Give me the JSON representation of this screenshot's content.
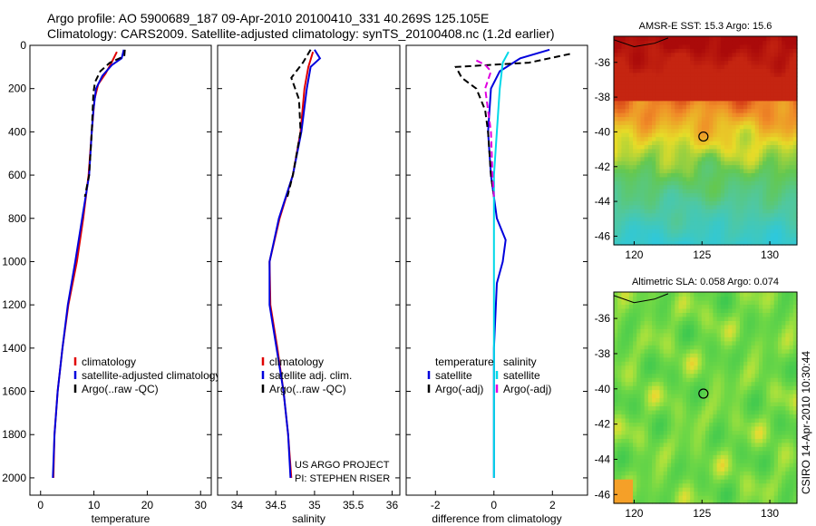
{
  "header": {
    "line1": "Argo profile: AO 5900689_187 09-Apr-2010 20100410_331 40.269S 125.105E",
    "line2": "Climatology: CARS2009. Satellite-adjusted climatology: synTS_20100408.nc (1.2d earlier)"
  },
  "side_label": "CSIRO 14-Apr-2010 10:30:44",
  "colors": {
    "climatology": "#e00000",
    "satellite": "#0000dd",
    "argo": "#000000",
    "satellite_salinity": "#00d8e8",
    "argo_adj_salinity": "#e000e0"
  },
  "chart_data": [
    {
      "type": "line",
      "xlabel": "temperature",
      "ylabel": "",
      "xlim": [
        -2,
        32
      ],
      "ylim": [
        2080,
        0
      ],
      "y_reversed": true,
      "x_ticks": [
        0,
        10,
        20,
        30
      ],
      "y_ticks": [
        0,
        200,
        400,
        600,
        800,
        1000,
        1200,
        1400,
        1600,
        1800,
        2000
      ],
      "legend": [
        "climatology",
        "satellite-adjusted climatology",
        "Argo(..raw -QC)"
      ],
      "legend_position": "lower-right",
      "series": [
        {
          "name": "climatology",
          "color_key": "climatology",
          "dash": "solid",
          "points": [
            [
              14.3,
              30
            ],
            [
              13.3,
              80
            ],
            [
              12.2,
              130
            ],
            [
              10.8,
              180
            ],
            [
              10.1,
              250
            ],
            [
              9.6,
              400
            ],
            [
              9.0,
              600
            ],
            [
              8.0,
              800
            ],
            [
              6.8,
              1000
            ],
            [
              5.2,
              1200
            ],
            [
              4.1,
              1400
            ],
            [
              3.2,
              1600
            ],
            [
              2.6,
              1800
            ],
            [
              2.4,
              2000
            ]
          ]
        },
        {
          "name": "satellite-adjusted climatology",
          "color_key": "satellite",
          "dash": "solid",
          "points": [
            [
              15.6,
              20
            ],
            [
              15.2,
              60
            ],
            [
              13.4,
              90
            ],
            [
              11.6,
              140
            ],
            [
              10.4,
              200
            ],
            [
              9.9,
              300
            ],
            [
              9.6,
              400
            ],
            [
              9.1,
              600
            ],
            [
              7.8,
              800
            ],
            [
              6.5,
              1000
            ],
            [
              5.1,
              1200
            ],
            [
              4.1,
              1400
            ],
            [
              3.2,
              1600
            ],
            [
              2.6,
              1800
            ],
            [
              2.3,
              2000
            ]
          ]
        },
        {
          "name": "Argo(..raw -QC)",
          "color_key": "argo",
          "dash": "dashed",
          "points": [
            [
              15.8,
              20
            ],
            [
              15.7,
              50
            ],
            [
              13.0,
              80
            ],
            [
              11.2,
              120
            ],
            [
              10.2,
              170
            ],
            [
              9.9,
              220
            ],
            [
              9.6,
              400
            ],
            [
              9.1,
              600
            ],
            [
              8.3,
              700
            ]
          ]
        }
      ]
    },
    {
      "type": "line",
      "xlabel": "salinity",
      "ylabel": "",
      "xlim": [
        33.75,
        36.1
      ],
      "ylim": [
        2080,
        0
      ],
      "y_reversed": true,
      "x_ticks": [
        34,
        34.5,
        35,
        35.5,
        36
      ],
      "legend": [
        "climatology",
        "satellite adj. clim.",
        "Argo(..raw -QC)"
      ],
      "legend_position": "lower-right",
      "annotation": [
        "US ARGO PROJECT",
        "PI: STEPHEN RISER"
      ],
      "series": [
        {
          "name": "climatology",
          "color_key": "climatology",
          "dash": "solid",
          "points": [
            [
              34.98,
              30
            ],
            [
              34.92,
              100
            ],
            [
              34.87,
              200
            ],
            [
              34.82,
              400
            ],
            [
              34.72,
              600
            ],
            [
              34.55,
              800
            ],
            [
              34.42,
              1000
            ],
            [
              34.43,
              1200
            ],
            [
              34.52,
              1400
            ],
            [
              34.6,
              1600
            ],
            [
              34.66,
              1800
            ],
            [
              34.7,
              2000
            ]
          ]
        },
        {
          "name": "satellite adj. clim.",
          "color_key": "satellite",
          "dash": "solid",
          "points": [
            [
              35.0,
              20
            ],
            [
              35.07,
              60
            ],
            [
              34.95,
              100
            ],
            [
              34.9,
              200
            ],
            [
              34.83,
              400
            ],
            [
              34.72,
              600
            ],
            [
              34.54,
              800
            ],
            [
              34.42,
              1000
            ],
            [
              34.42,
              1200
            ],
            [
              34.51,
              1400
            ],
            [
              34.6,
              1600
            ],
            [
              34.66,
              1800
            ],
            [
              34.69,
              2000
            ]
          ]
        },
        {
          "name": "Argo(..raw -QC)",
          "color_key": "argo",
          "dash": "dashed",
          "points": [
            [
              34.95,
              20
            ],
            [
              34.85,
              80
            ],
            [
              34.7,
              150
            ],
            [
              34.8,
              250
            ],
            [
              34.82,
              400
            ],
            [
              34.72,
              600
            ],
            [
              34.65,
              700
            ]
          ]
        }
      ]
    },
    {
      "type": "line",
      "xlabel": "difference from climatology",
      "ylabel": "",
      "xlim": [
        -3,
        3.2
      ],
      "ylim": [
        2080,
        0
      ],
      "y_reversed": true,
      "x_ticks": [
        -2,
        0,
        2
      ],
      "legend": [
        "temperature",
        "salinity",
        "satellite",
        "satellite",
        "Argo(-adj)",
        "Argo(-adj)"
      ],
      "legend_position": "lower-right",
      "series": [
        {
          "name": "temperature satellite",
          "color_key": "satellite",
          "dash": "solid",
          "points": [
            [
              1.9,
              20
            ],
            [
              0.9,
              60
            ],
            [
              0.2,
              120
            ],
            [
              -0.1,
              200
            ],
            [
              -0.2,
              400
            ],
            [
              -0.1,
              600
            ],
            [
              0.1,
              800
            ],
            [
              0.4,
              900
            ],
            [
              0.3,
              1000
            ],
            [
              0.1,
              1100
            ],
            [
              0.0,
              1400
            ],
            [
              0.0,
              2000
            ]
          ]
        },
        {
          "name": "temperature Argo(-adj)",
          "color_key": "argo",
          "dash": "dashed",
          "points": [
            [
              2.6,
              40
            ],
            [
              1.2,
              80
            ],
            [
              -1.3,
              100
            ],
            [
              -1.1,
              150
            ],
            [
              -0.6,
              200
            ],
            [
              -0.3,
              300
            ],
            [
              -0.2,
              400
            ],
            [
              -0.1,
              600
            ],
            [
              0.0,
              700
            ]
          ]
        },
        {
          "name": "salinity satellite",
          "color_key": "satellite_salinity",
          "dash": "solid",
          "points": [
            [
              0.5,
              30
            ],
            [
              0.3,
              80
            ],
            [
              0.2,
              200
            ],
            [
              0.1,
              400
            ],
            [
              0.0,
              600
            ],
            [
              0.0,
              800
            ],
            [
              0.0,
              1000
            ],
            [
              0.0,
              1400
            ],
            [
              0.0,
              2000
            ]
          ]
        },
        {
          "name": "salinity Argo(-adj)",
          "color_key": "argo_adj_salinity",
          "dash": "dashed",
          "points": [
            [
              -0.6,
              70
            ],
            [
              -0.3,
              90
            ],
            [
              -0.1,
              120
            ],
            [
              -0.3,
              200
            ],
            [
              -0.1,
              400
            ],
            [
              -0.05,
              600
            ],
            [
              0.0,
              700
            ]
          ]
        }
      ]
    },
    {
      "type": "heatmap",
      "title": "AMSR-E SST: 15.3 Argo: 15.6",
      "xlim": [
        118.5,
        132
      ],
      "ylim": [
        -46.5,
        -34.5
      ],
      "x_ticks": [
        120,
        125,
        130
      ],
      "y_ticks": [
        -36,
        -38,
        -40,
        -42,
        -44,
        -46
      ],
      "marker": {
        "lon": 125.105,
        "lat": -40.269
      },
      "colorscale": "sst"
    },
    {
      "type": "heatmap",
      "title": "Altimetric SLA: 0.058 Argo: 0.074",
      "xlim": [
        118.5,
        132
      ],
      "ylim": [
        -46.5,
        -34.5
      ],
      "x_ticks": [
        120,
        125,
        130
      ],
      "y_ticks": [
        -36,
        -38,
        -40,
        -42,
        -44,
        -46
      ],
      "marker": {
        "lon": 125.105,
        "lat": -40.269
      },
      "colorscale": "sla"
    }
  ]
}
